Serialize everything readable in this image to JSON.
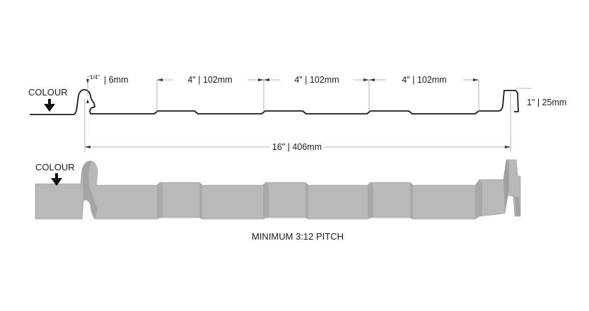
{
  "labels": {
    "colour_top": "COLOUR",
    "colour_bottom": "COLOUR",
    "quarter_in": "1/4\"",
    "six_mm": "| 6mm",
    "rib_spacing": [
      "4\" | 102mm",
      "4\" | 102mm",
      "4\" | 102mm"
    ],
    "height": "1\" | 25mm",
    "coverage": "16\" | 406mm",
    "pitch": "MINIMUM 3:12 PITCH"
  },
  "colors": {
    "panel_fill": "#b8b9bb",
    "panel_shade": "#a4a5a7",
    "line": "#1a1a1a",
    "dimension_line": "#9a9a9a"
  }
}
